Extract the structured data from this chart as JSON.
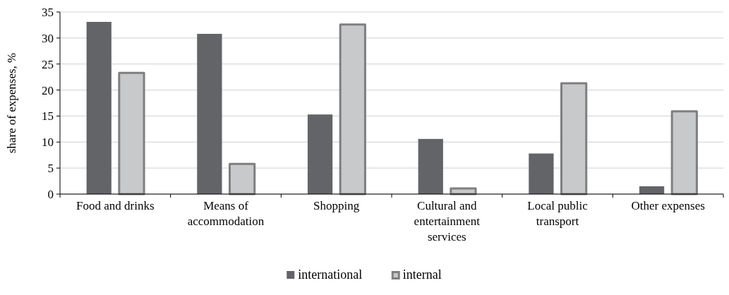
{
  "chart_data": {
    "type": "bar",
    "ylabel": "share of expenses, %",
    "categories": [
      "Food and drinks",
      "Means of accommodation",
      "Shopping",
      "Cultural and entertainment services",
      "Local public transport",
      "Other expenses"
    ],
    "series": [
      {
        "name": "international",
        "color": "#636468",
        "values": [
          33.1,
          30.8,
          15.3,
          10.6,
          7.8,
          1.5
        ]
      },
      {
        "name": "internal",
        "color": "#c8c9cb",
        "values": [
          23.3,
          5.8,
          32.6,
          1.1,
          21.3,
          15.9
        ]
      }
    ],
    "ylim": [
      0,
      35
    ],
    "yticks": [
      0,
      5,
      10,
      15,
      20,
      25,
      30,
      35
    ],
    "grid": "y",
    "legend": "bottom"
  }
}
